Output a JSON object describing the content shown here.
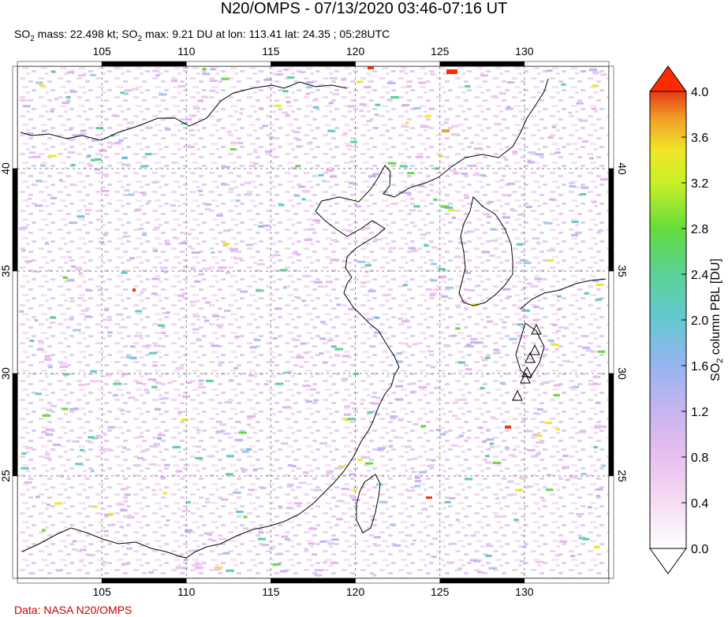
{
  "header": {
    "title": "N20/OMPS - 07/13/2020 03:46-07:16 UT",
    "subtitle_parts": {
      "so": "SO",
      "sub2": "2",
      "mass_text": " mass: 22.498 kt; SO",
      "max_text": " max: 9.21 DU at lon: 113.41 lat: 24.35 ; 05:28UTC"
    }
  },
  "map": {
    "lon_range": [
      100,
      135
    ],
    "lat_range": [
      20,
      45
    ],
    "lon_ticks": [
      "105",
      "110",
      "115",
      "120",
      "125",
      "130"
    ],
    "lat_ticks": [
      "40",
      "35",
      "30",
      "25"
    ],
    "grid": "dashed"
  },
  "colorbar": {
    "label": "SO2 column PBL [DU]",
    "label_parts": {
      "a": "SO",
      "sub": "2",
      "b": " column PBL [DU]"
    },
    "ticks": [
      "4.0",
      "3.6",
      "3.2",
      "2.8",
      "2.4",
      "2.0",
      "1.6",
      "1.2",
      "0.8",
      "0.4",
      "0.0"
    ],
    "range": [
      0.0,
      4.0
    ],
    "colors": [
      "#ffffff",
      "#f0c8f0",
      "#c8b4f0",
      "#8cb4f0",
      "#64c8d2",
      "#5ad296",
      "#64dc3c",
      "#c8f028",
      "#f0e628",
      "#f0a028",
      "#e63c14",
      "#ff0000"
    ]
  },
  "footer": {
    "credit": "Data: NASA N20/OMPS"
  }
}
